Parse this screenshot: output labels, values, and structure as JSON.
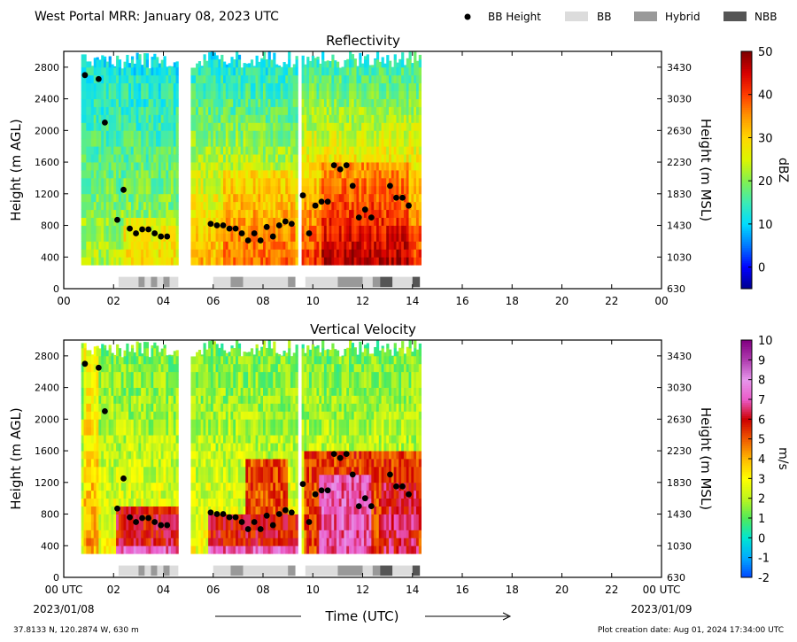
{
  "header": {
    "title": "West Portal MRR:  January 08, 2023 UTC",
    "legend": [
      {
        "label": "BB Height",
        "kind": "dot",
        "color": "#000000"
      },
      {
        "label": "BB",
        "kind": "box",
        "color": "#dcdcdc"
      },
      {
        "label": "Hybrid",
        "kind": "box",
        "color": "#999999"
      },
      {
        "label": "NBB",
        "kind": "box",
        "color": "#555555"
      }
    ]
  },
  "footer": {
    "location": "37.8133 N, 120.2874 W, 630 m",
    "creation_date": "Plot creation date: Aug 01, 2024 17:34:00 UTC",
    "xlabel": "Time (UTC)",
    "start_date": "2023/01/08",
    "end_date": "2023/01/09"
  },
  "chart_data": [
    {
      "type": "heatmap",
      "title": "Reflectivity",
      "ylabel": "Height (m AGL)",
      "ylabel_right": "Height (m MSL)",
      "colorbar_label": "dBZ",
      "colorbar_range": [
        -5,
        50
      ],
      "colorbar_ticks": [
        0,
        10,
        20,
        30,
        40,
        50
      ],
      "xlim": [
        0,
        24
      ],
      "ylim": [
        0,
        3000
      ],
      "xticks": [
        "00",
        "02",
        "04",
        "06",
        "08",
        "10",
        "12",
        "14",
        "16",
        "18",
        "20",
        "22",
        "00"
      ],
      "yticks_left": [
        0,
        400,
        800,
        1200,
        1600,
        2000,
        2400,
        2800
      ],
      "yticks_right": [
        "630",
        "1030",
        "1430",
        "1830",
        "2230",
        "2630",
        "3030",
        "3430"
      ]
    },
    {
      "type": "heatmap",
      "title": "Vertical Velocity",
      "ylabel": "Height (m AGL)",
      "ylabel_right": "Height (m MSL)",
      "colorbar_label": "m/s",
      "colorbar_range": [
        -2,
        10
      ],
      "colorbar_ticks": [
        -2,
        -1,
        0,
        1,
        2,
        3,
        4,
        5,
        6,
        7,
        8,
        9,
        10
      ],
      "xlim": [
        0,
        24
      ],
      "ylim": [
        0,
        3000
      ],
      "xticks": [
        "00 UTC",
        "02",
        "04",
        "06",
        "08",
        "10",
        "12",
        "14",
        "16",
        "18",
        "20",
        "22",
        "00 UTC"
      ],
      "yticks_left": [
        0,
        400,
        800,
        1200,
        1600,
        2000,
        2400,
        2800
      ],
      "yticks_right": [
        "630",
        "1030",
        "1430",
        "1830",
        "2230",
        "2630",
        "3030",
        "3430"
      ]
    }
  ],
  "bb_height_points": [
    [
      0.85,
      2700
    ],
    [
      1.4,
      2650
    ],
    [
      1.65,
      2100
    ],
    [
      2.15,
      870
    ],
    [
      2.4,
      1250
    ],
    [
      2.65,
      760
    ],
    [
      2.9,
      700
    ],
    [
      3.15,
      750
    ],
    [
      3.4,
      750
    ],
    [
      3.65,
      700
    ],
    [
      3.9,
      660
    ],
    [
      4.15,
      660
    ],
    [
      5.9,
      820
    ],
    [
      6.15,
      800
    ],
    [
      6.4,
      800
    ],
    [
      6.65,
      760
    ],
    [
      6.9,
      760
    ],
    [
      7.15,
      700
    ],
    [
      7.4,
      610
    ],
    [
      7.65,
      700
    ],
    [
      7.9,
      610
    ],
    [
      8.15,
      780
    ],
    [
      8.4,
      660
    ],
    [
      8.65,
      800
    ],
    [
      8.9,
      850
    ],
    [
      9.15,
      820
    ],
    [
      9.6,
      1180
    ],
    [
      9.85,
      700
    ],
    [
      10.1,
      1050
    ],
    [
      10.35,
      1100
    ],
    [
      10.6,
      1100
    ],
    [
      10.85,
      1560
    ],
    [
      11.1,
      1510
    ],
    [
      11.35,
      1560
    ],
    [
      11.6,
      1300
    ],
    [
      11.85,
      900
    ],
    [
      12.1,
      1000
    ],
    [
      12.35,
      900
    ],
    [
      13.1,
      1300
    ],
    [
      13.35,
      1150
    ],
    [
      13.6,
      1150
    ],
    [
      13.85,
      1050
    ]
  ],
  "bb_type_segments": [
    {
      "start": 2.2,
      "end": 3.0,
      "type": "BB"
    },
    {
      "start": 3.0,
      "end": 3.25,
      "type": "Hybrid"
    },
    {
      "start": 3.25,
      "end": 3.5,
      "type": "BB"
    },
    {
      "start": 3.5,
      "end": 3.75,
      "type": "Hybrid"
    },
    {
      "start": 3.75,
      "end": 4.0,
      "type": "BB"
    },
    {
      "start": 4.0,
      "end": 4.25,
      "type": "Hybrid"
    },
    {
      "start": 4.25,
      "end": 4.6,
      "type": "BB"
    },
    {
      "start": 6.0,
      "end": 6.7,
      "type": "BB"
    },
    {
      "start": 6.7,
      "end": 7.2,
      "type": "Hybrid"
    },
    {
      "start": 7.2,
      "end": 9.0,
      "type": "BB"
    },
    {
      "start": 9.0,
      "end": 9.3,
      "type": "Hybrid"
    },
    {
      "start": 9.7,
      "end": 11.0,
      "type": "BB"
    },
    {
      "start": 11.0,
      "end": 12.0,
      "type": "Hybrid"
    },
    {
      "start": 12.0,
      "end": 12.4,
      "type": "BB"
    },
    {
      "start": 12.4,
      "end": 12.7,
      "type": "Hybrid"
    },
    {
      "start": 12.7,
      "end": 13.2,
      "type": "NBB"
    },
    {
      "start": 13.2,
      "end": 14.0,
      "type": "BB"
    },
    {
      "start": 14.0,
      "end": 14.3,
      "type": "NBB"
    }
  ],
  "data_segments": [
    [
      0.7,
      4.55
    ],
    [
      5.1,
      9.35
    ],
    [
      9.55,
      14.3
    ]
  ]
}
